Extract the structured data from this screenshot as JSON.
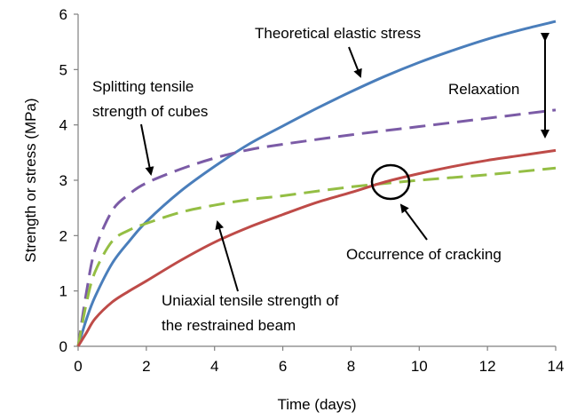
{
  "chart_data": {
    "type": "line",
    "title": "",
    "xlabel": "Time (days)",
    "ylabel": "Strength or stress (MPa)",
    "xlim": [
      0,
      14
    ],
    "ylim": [
      0,
      6
    ],
    "x_ticks": [
      0,
      2,
      4,
      6,
      8,
      10,
      12,
      14
    ],
    "y_ticks": [
      0,
      1,
      2,
      3,
      4,
      5,
      6
    ],
    "grid": false,
    "legend": "none",
    "series": [
      {
        "key": "theoretical_elastic_stress",
        "style": "solid",
        "color": "#4a7ebb",
        "x": [
          0,
          0.25,
          0.5,
          1,
          1.5,
          2,
          3,
          4,
          5,
          6,
          7,
          8,
          9,
          10,
          11,
          12,
          13,
          14
        ],
        "y": [
          0,
          0.5,
          0.9,
          1.5,
          1.9,
          2.25,
          2.8,
          3.25,
          3.65,
          3.98,
          4.3,
          4.6,
          4.88,
          5.13,
          5.35,
          5.55,
          5.72,
          5.87
        ]
      },
      {
        "key": "splitting_tensile_strength_of_cubes",
        "style": "dashed",
        "color": "#7b5ba6",
        "x": [
          0,
          0.25,
          0.5,
          1,
          1.5,
          2,
          3,
          4,
          5,
          6,
          8,
          10,
          12,
          14
        ],
        "y": [
          0,
          1.0,
          1.75,
          2.45,
          2.75,
          2.95,
          3.2,
          3.4,
          3.55,
          3.65,
          3.82,
          3.97,
          4.12,
          4.27
        ]
      },
      {
        "key": "uniaxial_tensile_strength_of_restrained_beam",
        "style": "dashed",
        "color": "#94be44",
        "x": [
          0,
          0.25,
          0.5,
          1,
          1.5,
          2,
          3,
          4,
          5,
          6,
          8,
          10,
          12,
          14
        ],
        "y": [
          0,
          0.8,
          1.35,
          1.9,
          2.1,
          2.22,
          2.42,
          2.55,
          2.65,
          2.72,
          2.88,
          3.0,
          3.1,
          3.22
        ]
      },
      {
        "key": "restrained_beam_stress",
        "style": "solid",
        "color": "#be4b48",
        "x": [
          0,
          0.25,
          0.5,
          1,
          1.5,
          2,
          3,
          4,
          5,
          6,
          7,
          8,
          9,
          10,
          11,
          12,
          13,
          14
        ],
        "y": [
          0,
          0.25,
          0.5,
          0.8,
          1.0,
          1.18,
          1.55,
          1.88,
          2.15,
          2.38,
          2.6,
          2.78,
          2.97,
          3.12,
          3.25,
          3.36,
          3.45,
          3.54
        ]
      }
    ],
    "annotations": {
      "theoretical": "Theoretical elastic stress",
      "splitting_line1": "Splitting tensile",
      "splitting_line2": "strength of cubes",
      "relaxation": "Relaxation",
      "cracking": "Occurrence of cracking",
      "uniaxial_line1": "Uniaxial tensile strength of",
      "uniaxial_line2": "the restrained beam"
    }
  }
}
